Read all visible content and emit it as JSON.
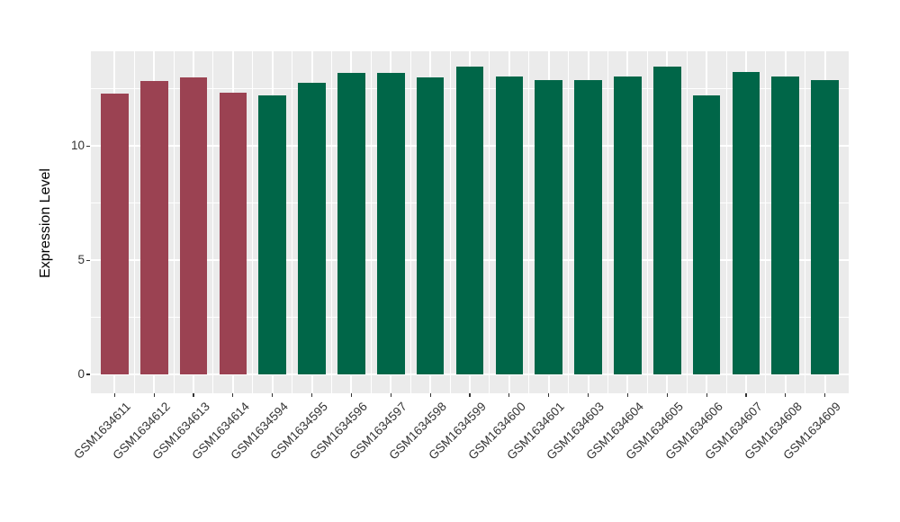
{
  "chart_data": {
    "type": "bar",
    "title": "",
    "ylabel": "Expression Level",
    "xlabel": "",
    "categories": [
      "GSM1634611",
      "GSM1634612",
      "GSM1634613",
      "GSM1634614",
      "GSM1634594",
      "GSM1634595",
      "GSM1634596",
      "GSM1634597",
      "GSM1634598",
      "GSM1634599",
      "GSM1634600",
      "GSM1634601",
      "GSM1634603",
      "GSM1634604",
      "GSM1634605",
      "GSM1634606",
      "GSM1634607",
      "GSM1634608",
      "GSM1634609"
    ],
    "values": [
      12.28,
      12.86,
      13.0,
      12.33,
      12.22,
      12.76,
      13.2,
      13.22,
      13.0,
      13.48,
      13.06,
      12.87,
      12.9,
      13.04,
      13.49,
      12.23,
      13.23,
      13.05,
      12.89
    ],
    "bar_groups": [
      0,
      0,
      0,
      0,
      1,
      1,
      1,
      1,
      1,
      1,
      1,
      1,
      1,
      1,
      1,
      1,
      1,
      1,
      1
    ],
    "group_colors": [
      "#9B4252",
      "#006648"
    ],
    "ylim": [
      0,
      14.15
    ],
    "yticks": [
      0,
      5,
      10
    ],
    "ytick_labels": [
      "0",
      "5",
      "10"
    ],
    "yminor_ticks": [
      2.5,
      7.5,
      12.5
    ],
    "grid": true,
    "legend_position": "none",
    "panel_background": "#EBEBEB",
    "grid_color": "#FFFFFF",
    "tick_text_color": "#333333",
    "bar_width_fraction": 0.7
  }
}
